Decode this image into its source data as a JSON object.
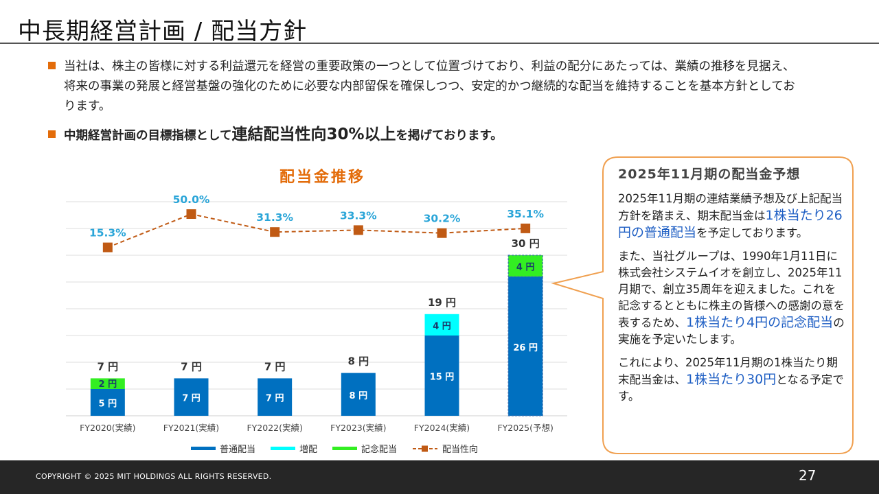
{
  "title": "中長期経営計画 / 配当方針",
  "bullets": {
    "p1": "当社は、株主の皆様に対する利益還元を経営の重要政策の一つとして位置づけており、利益の配分にあたっては、業績の推移を見据え、将来の事業の発展と経営基盤の強化のために必要な内部留保を確保しつつ、安定的かつ継続的な配当を維持することを基本方針としております。",
    "p2_a": "中期経営計画の目標指標として",
    "p2_b": "連結配当性向30%以上",
    "p2_c": "を掲げております。"
  },
  "chart_data": {
    "type": "bar",
    "title": "配当金推移",
    "categories": [
      "FY2020(実績)",
      "FY2021(実績)",
      "FY2022(実績)",
      "FY2023(実績)",
      "FY2024(実績)",
      "FY2025(予想)"
    ],
    "series": [
      {
        "name": "普通配当",
        "values": [
          5,
          7,
          7,
          8,
          15,
          26
        ],
        "labels": [
          "5 円",
          "7 円",
          "7 円",
          "8 円",
          "15 円",
          "26 円"
        ]
      },
      {
        "name": "増配",
        "values": [
          0,
          0,
          0,
          0,
          4,
          0
        ],
        "labels": [
          "",
          "",
          "",
          "",
          "4 円",
          ""
        ]
      },
      {
        "name": "記念配当",
        "values": [
          2,
          0,
          0,
          0,
          0,
          4
        ],
        "labels": [
          "2 円",
          "",
          "",
          "",
          "",
          "4 円"
        ]
      },
      {
        "name": "配当性向",
        "type": "line",
        "values": [
          15.3,
          50.0,
          31.3,
          33.3,
          30.2,
          35.1
        ],
        "labels": [
          "15.3%",
          "50.0%",
          "31.3%",
          "33.3%",
          "30.2%",
          "35.1%"
        ]
      }
    ],
    "totals": [
      "7 円",
      "7 円",
      "7 円",
      "8 円",
      "19 円",
      "30 円"
    ],
    "forecast_index": 5,
    "ylim": [
      0,
      30
    ],
    "ylim_ratio": [
      0,
      60
    ],
    "grid": true,
    "legend_position": "bottom"
  },
  "legend": {
    "items": [
      "普通配当",
      "増配",
      "記念配当",
      "配当性向"
    ]
  },
  "callout": {
    "title": "2025年11月期の配当金予想",
    "p1_a": "2025年11月期の連結業績予想及び上記配当方針を踏まえ、期末配当金は",
    "p1_hl": "1株当たり26円の普通配当",
    "p1_b": "を予定しております。",
    "p2_a": "また、当社グループは、1990年1月11日に株式会社システムイオを創立し、2025年11月期で、創立35周年を迎えました。これを記念するとともに株主の皆様への感謝の意を表するため、",
    "p2_hl": "1株当たり4円の記念配当",
    "p2_b": "の実施を予定いたします。",
    "p3_a": "これにより、2025年11月期の1株当たり期末配当金は、",
    "p3_hl": "1株当たり30円",
    "p3_b": "となる予定です。"
  },
  "footer": {
    "copyright": "COPYRIGHT © 2025 MIT HOLDINGS ALL RIGHTS RESERVED.",
    "page": "27"
  },
  "colors": {
    "regular": "#0070c0",
    "increase": "#00ffff",
    "commemorative": "#33ee22",
    "ratio": "#c05a14",
    "accent": "#e36c0a",
    "ratio_label": "#2aa5d8",
    "highlight": "#1f5fc4"
  }
}
